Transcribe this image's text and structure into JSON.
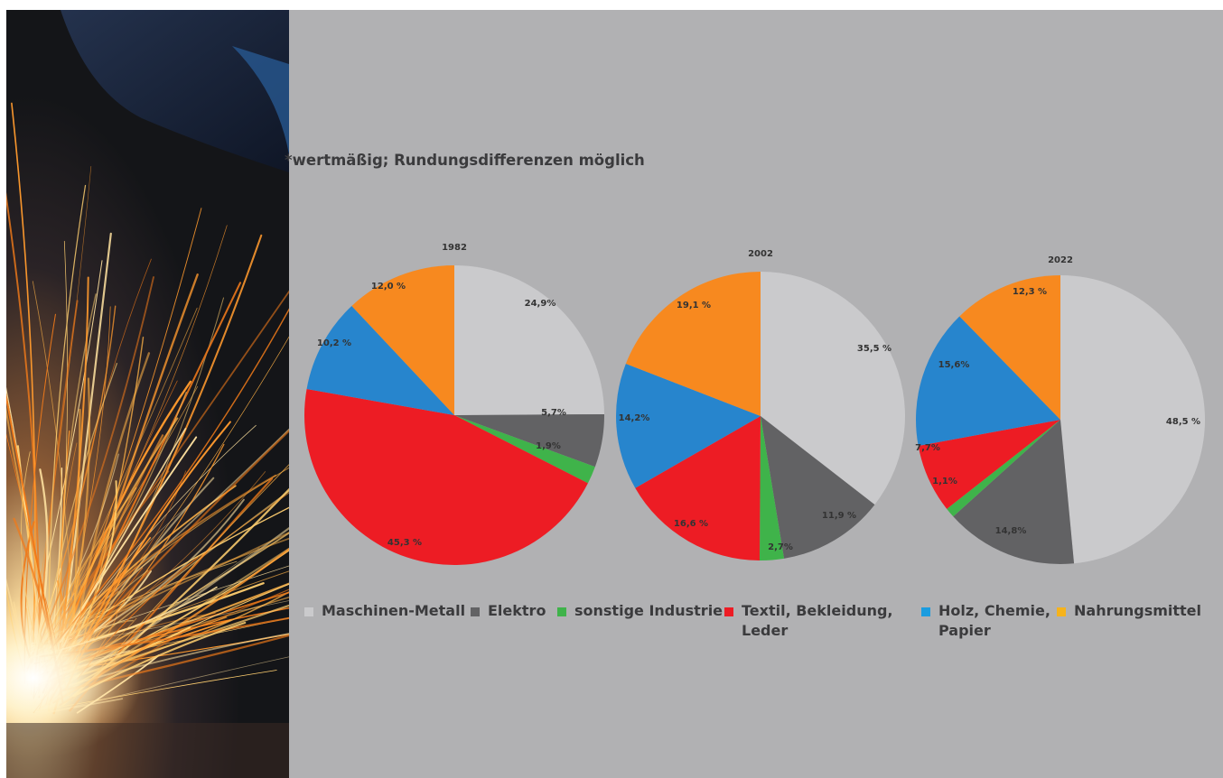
{
  "footnote": "*wertmäßig; Rundungsdifferenzen möglich",
  "colors": {
    "Maschinen-Metall": "#cacacc",
    "Elektro": "#626264",
    "sonstige Industrie": "#3fb34a",
    "Textil, Bekleidung, Leder": "#ed1c24",
    "Holz, Chemie, Papier": "#2785cd",
    "Nahrungsmittel": "#f7891f"
  },
  "legend": [
    {
      "label": "Maschinen-Metall",
      "color": "#cacacc"
    },
    {
      "label": "Elektro",
      "color": "#626264"
    },
    {
      "label": "sonstige Industrie",
      "color": "#3fb34a"
    },
    {
      "label": "Textil, Bekleidung,\nLeder",
      "color": "#ed1c24"
    },
    {
      "label": "Holz, Chemie,\nPapier",
      "color": "#1b9cdf"
    },
    {
      "label": "Nahrungsmittel",
      "color": "#f6b31c"
    }
  ],
  "chart_data": [
    {
      "type": "pie",
      "title": "1982",
      "slices": [
        {
          "category": "Maschinen-Metall",
          "value": 24.9,
          "label": "24,9%"
        },
        {
          "category": "Elektro",
          "value": 5.7,
          "label": "5,7%"
        },
        {
          "category": "sonstige Industrie",
          "value": 1.9,
          "label": "1,9%"
        },
        {
          "category": "Textil, Bekleidung, Leder",
          "value": 45.3,
          "label": "45,3 %"
        },
        {
          "category": "Holz, Chemie, Papier",
          "value": 10.2,
          "label": "10,2 %"
        },
        {
          "category": "Nahrungsmittel",
          "value": 12.0,
          "label": "12,0 %"
        }
      ]
    },
    {
      "type": "pie",
      "title": "2002",
      "slices": [
        {
          "category": "Maschinen-Metall",
          "value": 35.5,
          "label": "35,5 %"
        },
        {
          "category": "Elektro",
          "value": 11.9,
          "label": "11,9 %"
        },
        {
          "category": "sonstige Industrie",
          "value": 2.7,
          "label": "2,7%"
        },
        {
          "category": "Textil, Bekleidung, Leder",
          "value": 16.6,
          "label": "16,6 %"
        },
        {
          "category": "Holz, Chemie, Papier",
          "value": 14.2,
          "label": "14,2%"
        },
        {
          "category": "Nahrungsmittel",
          "value": 19.1,
          "label": "19,1 %"
        }
      ]
    },
    {
      "type": "pie",
      "title": "2022",
      "slices": [
        {
          "category": "Maschinen-Metall",
          "value": 48.5,
          "label": "48,5 %"
        },
        {
          "category": "Elektro",
          "value": 14.8,
          "label": "14,8%"
        },
        {
          "category": "sonstige Industrie",
          "value": 1.1,
          "label": "1,1%"
        },
        {
          "category": "Textil, Bekleidung, Leder",
          "value": 7.7,
          "label": "7,7%"
        },
        {
          "category": "Holz, Chemie, Papier",
          "value": 15.6,
          "label": "15,6%"
        },
        {
          "category": "Nahrungsmittel",
          "value": 12.3,
          "label": "12,3 %"
        }
      ]
    }
  ]
}
